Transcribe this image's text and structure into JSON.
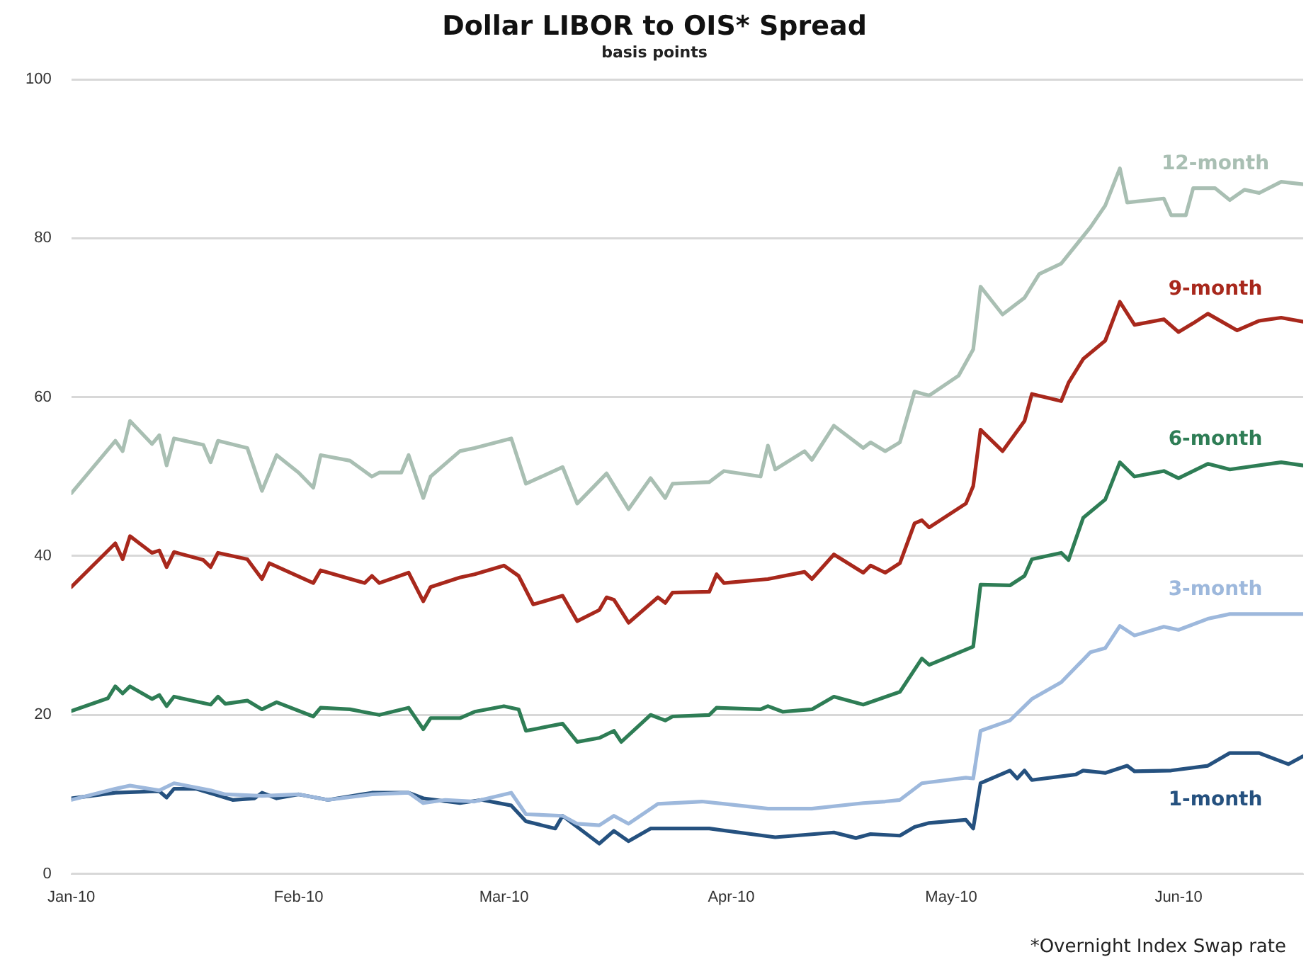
{
  "chart_data": {
    "type": "line",
    "title": "Dollar LIBOR to OIS* Spread",
    "subtitle": "basis points",
    "annotations": [
      "*Overnight Index Swap rate"
    ],
    "grid": "y",
    "legend": false,
    "xlim": [
      "2010-01-01",
      "2010-06-18"
    ],
    "xticks": [
      {
        "value": "2010-01-01",
        "label": "Jan-10"
      },
      {
        "value": "2010-02-01",
        "label": "Feb-10"
      },
      {
        "value": "2010-03-01",
        "label": "Mar-10"
      },
      {
        "value": "2010-04-01",
        "label": "Apr-10"
      },
      {
        "value": "2010-05-01",
        "label": "May-10"
      },
      {
        "value": "2010-06-01",
        "label": "Jun-10"
      }
    ],
    "ylim": [
      0,
      100
    ],
    "yticks": [
      0,
      20,
      40,
      60,
      80,
      100
    ],
    "series": [
      {
        "name": "12-month",
        "color": "#a9bfb3",
        "x": [
          "2010-01-01",
          "2010-01-07",
          "2010-01-08",
          "2010-01-09",
          "2010-01-12",
          "2010-01-13",
          "2010-01-14",
          "2010-01-15",
          "2010-01-19",
          "2010-01-20",
          "2010-01-21",
          "2010-01-25",
          "2010-01-27",
          "2010-01-29",
          "2010-02-01",
          "2010-02-03",
          "2010-02-04",
          "2010-02-08",
          "2010-02-11",
          "2010-02-12",
          "2010-02-15",
          "2010-02-16",
          "2010-02-18",
          "2010-02-19",
          "2010-02-23",
          "2010-02-25",
          "2010-03-02",
          "2010-03-04",
          "2010-03-09",
          "2010-03-11",
          "2010-03-15",
          "2010-03-18",
          "2010-03-21",
          "2010-03-23",
          "2010-03-24",
          "2010-03-29",
          "2010-03-31",
          "2010-04-05",
          "2010-04-06",
          "2010-04-07",
          "2010-04-11",
          "2010-04-12",
          "2010-04-15",
          "2010-04-19",
          "2010-04-20",
          "2010-04-22",
          "2010-04-24",
          "2010-04-26",
          "2010-04-28",
          "2010-05-02",
          "2010-05-04",
          "2010-05-05",
          "2010-05-08",
          "2010-05-11",
          "2010-05-13",
          "2010-05-16",
          "2010-05-20",
          "2010-05-22",
          "2010-05-24",
          "2010-05-25",
          "2010-05-30",
          "2010-05-31",
          "2010-06-02",
          "2010-06-03",
          "2010-06-06",
          "2010-06-08",
          "2010-06-10",
          "2010-06-12",
          "2010-06-15",
          "2010-06-18"
        ],
        "values": [
          47.9,
          54.5,
          53.2,
          57.0,
          54.1,
          55.2,
          51.4,
          54.8,
          54.0,
          51.8,
          54.5,
          53.6,
          48.2,
          52.7,
          50.5,
          48.6,
          52.7,
          52.0,
          50.0,
          50.5,
          50.5,
          52.7,
          47.3,
          50.0,
          53.2,
          53.6,
          54.8,
          49.1,
          51.2,
          46.6,
          50.4,
          45.9,
          49.8,
          47.3,
          49.1,
          49.3,
          50.7,
          50.0,
          53.9,
          50.9,
          53.2,
          52.1,
          56.4,
          53.6,
          54.3,
          53.2,
          54.3,
          60.7,
          60.2,
          62.7,
          66.0,
          73.9,
          70.4,
          72.5,
          75.5,
          76.8,
          81.4,
          84.1,
          88.8,
          84.5,
          85.0,
          82.9,
          82.9,
          86.3,
          86.3,
          84.8,
          86.1,
          85.7,
          87.1,
          86.8
        ]
      },
      {
        "name": "9-month",
        "color": "#a8281c",
        "x": [
          "2010-01-01",
          "2010-01-07",
          "2010-01-08",
          "2010-01-09",
          "2010-01-12",
          "2010-01-13",
          "2010-01-14",
          "2010-01-15",
          "2010-01-19",
          "2010-01-20",
          "2010-01-21",
          "2010-01-25",
          "2010-01-27",
          "2010-01-28",
          "2010-02-03",
          "2010-02-04",
          "2010-02-10",
          "2010-02-11",
          "2010-02-12",
          "2010-02-16",
          "2010-02-18",
          "2010-02-19",
          "2010-02-23",
          "2010-02-25",
          "2010-03-01",
          "2010-03-03",
          "2010-03-05",
          "2010-03-09",
          "2010-03-11",
          "2010-03-14",
          "2010-03-15",
          "2010-03-16",
          "2010-03-18",
          "2010-03-22",
          "2010-03-23",
          "2010-03-24",
          "2010-03-29",
          "2010-03-30",
          "2010-03-31",
          "2010-04-06",
          "2010-04-11",
          "2010-04-12",
          "2010-04-15",
          "2010-04-19",
          "2010-04-20",
          "2010-04-22",
          "2010-04-24",
          "2010-04-26",
          "2010-04-27",
          "2010-04-28",
          "2010-05-03",
          "2010-05-04",
          "2010-05-05",
          "2010-05-08",
          "2010-05-11",
          "2010-05-12",
          "2010-05-16",
          "2010-05-17",
          "2010-05-19",
          "2010-05-22",
          "2010-05-24",
          "2010-05-26",
          "2010-05-30",
          "2010-06-01",
          "2010-06-03",
          "2010-06-05",
          "2010-06-09",
          "2010-06-12",
          "2010-06-15",
          "2010-06-18"
        ],
        "values": [
          36.1,
          41.6,
          39.6,
          42.5,
          40.4,
          40.7,
          38.6,
          40.5,
          39.5,
          38.6,
          40.4,
          39.6,
          37.1,
          39.1,
          36.6,
          38.2,
          36.6,
          37.5,
          36.6,
          37.9,
          34.3,
          36.1,
          37.3,
          37.7,
          38.8,
          37.5,
          33.9,
          35.0,
          31.8,
          33.2,
          34.8,
          34.5,
          31.6,
          34.8,
          34.1,
          35.4,
          35.5,
          37.7,
          36.6,
          37.1,
          38.0,
          37.1,
          40.2,
          37.9,
          38.8,
          37.9,
          39.1,
          44.1,
          44.5,
          43.6,
          46.6,
          48.8,
          55.9,
          53.2,
          57.0,
          60.4,
          59.5,
          61.8,
          64.8,
          67.1,
          72.0,
          69.1,
          69.8,
          68.2,
          69.3,
          70.5,
          68.4,
          69.6,
          70.0,
          69.5
        ]
      },
      {
        "name": "6-month",
        "color": "#2e7d55",
        "x": [
          "2010-01-01",
          "2010-01-06",
          "2010-01-07",
          "2010-01-08",
          "2010-01-09",
          "2010-01-12",
          "2010-01-13",
          "2010-01-14",
          "2010-01-15",
          "2010-01-20",
          "2010-01-21",
          "2010-01-22",
          "2010-01-25",
          "2010-01-27",
          "2010-01-29",
          "2010-02-03",
          "2010-02-04",
          "2010-02-08",
          "2010-02-12",
          "2010-02-16",
          "2010-02-18",
          "2010-02-19",
          "2010-02-23",
          "2010-02-25",
          "2010-03-01",
          "2010-03-03",
          "2010-03-04",
          "2010-03-09",
          "2010-03-11",
          "2010-03-14",
          "2010-03-16",
          "2010-03-17",
          "2010-03-21",
          "2010-03-23",
          "2010-03-24",
          "2010-03-29",
          "2010-03-30",
          "2010-04-05",
          "2010-04-06",
          "2010-04-08",
          "2010-04-12",
          "2010-04-15",
          "2010-04-19",
          "2010-04-24",
          "2010-04-27",
          "2010-04-28",
          "2010-05-04",
          "2010-05-05",
          "2010-05-09",
          "2010-05-11",
          "2010-05-12",
          "2010-05-16",
          "2010-05-17",
          "2010-05-19",
          "2010-05-22",
          "2010-05-24",
          "2010-05-26",
          "2010-05-30",
          "2010-06-01",
          "2010-06-05",
          "2010-06-08",
          "2010-06-15",
          "2010-06-18"
        ],
        "values": [
          20.5,
          22.1,
          23.6,
          22.7,
          23.6,
          22.0,
          22.5,
          21.1,
          22.3,
          21.3,
          22.3,
          21.4,
          21.8,
          20.7,
          21.6,
          19.8,
          20.9,
          20.7,
          20.0,
          20.9,
          18.2,
          19.6,
          19.6,
          20.4,
          21.1,
          20.7,
          18.0,
          18.9,
          16.6,
          17.1,
          18.0,
          16.6,
          20.0,
          19.3,
          19.8,
          20.0,
          20.9,
          20.7,
          21.1,
          20.4,
          20.7,
          22.3,
          21.3,
          22.9,
          27.1,
          26.3,
          28.6,
          36.4,
          36.3,
          37.5,
          39.6,
          40.4,
          39.5,
          44.8,
          47.1,
          51.8,
          50.0,
          50.7,
          49.8,
          51.6,
          50.9,
          51.8,
          51.4
        ]
      },
      {
        "name": "3-month",
        "color": "#9db8dc",
        "x": [
          "2010-01-01",
          "2010-01-07",
          "2010-01-09",
          "2010-01-13",
          "2010-01-15",
          "2010-01-20",
          "2010-01-22",
          "2010-01-27",
          "2010-02-01",
          "2010-02-05",
          "2010-02-11",
          "2010-02-16",
          "2010-02-18",
          "2010-02-21",
          "2010-02-25",
          "2010-03-02",
          "2010-03-04",
          "2010-03-09",
          "2010-03-11",
          "2010-03-14",
          "2010-03-16",
          "2010-03-18",
          "2010-03-22",
          "2010-03-28",
          "2010-04-06",
          "2010-04-12",
          "2010-04-19",
          "2010-04-22",
          "2010-04-24",
          "2010-04-27",
          "2010-05-03",
          "2010-05-04",
          "2010-05-05",
          "2010-05-09",
          "2010-05-12",
          "2010-05-16",
          "2010-05-20",
          "2010-05-22",
          "2010-05-24",
          "2010-05-26",
          "2010-05-30",
          "2010-06-01",
          "2010-06-05",
          "2010-06-08",
          "2010-06-13",
          "2010-06-18"
        ],
        "values": [
          9.3,
          10.7,
          11.1,
          10.5,
          11.4,
          10.5,
          10.0,
          9.8,
          10.0,
          9.3,
          10.0,
          10.2,
          8.9,
          9.3,
          9.1,
          10.2,
          7.5,
          7.3,
          6.3,
          6.1,
          7.3,
          6.3,
          8.8,
          9.1,
          8.2,
          8.2,
          8.9,
          9.1,
          9.3,
          11.4,
          12.1,
          12.0,
          18.0,
          19.3,
          22.0,
          24.1,
          27.9,
          28.4,
          31.2,
          30.0,
          31.1,
          30.7,
          32.1,
          32.7,
          32.7,
          32.7
        ]
      },
      {
        "name": "1-month",
        "color": "#25517f",
        "x": [
          "2010-01-01",
          "2010-01-07",
          "2010-01-13",
          "2010-01-14",
          "2010-01-15",
          "2010-01-18",
          "2010-01-23",
          "2010-01-26",
          "2010-01-27",
          "2010-01-29",
          "2010-02-01",
          "2010-02-05",
          "2010-02-11",
          "2010-02-16",
          "2010-02-18",
          "2010-02-23",
          "2010-02-26",
          "2010-03-02",
          "2010-03-04",
          "2010-03-08",
          "2010-03-09",
          "2010-03-14",
          "2010-03-16",
          "2010-03-18",
          "2010-03-21",
          "2010-03-29",
          "2010-04-07",
          "2010-04-15",
          "2010-04-18",
          "2010-04-20",
          "2010-04-24",
          "2010-04-26",
          "2010-04-28",
          "2010-05-03",
          "2010-05-04",
          "2010-05-05",
          "2010-05-09",
          "2010-05-10",
          "2010-05-11",
          "2010-05-12",
          "2010-05-18",
          "2010-05-19",
          "2010-05-22",
          "2010-05-25",
          "2010-05-26",
          "2010-05-31",
          "2010-06-05",
          "2010-06-08",
          "2010-06-12",
          "2010-06-16",
          "2010-06-18"
        ],
        "values": [
          9.5,
          10.2,
          10.4,
          9.6,
          10.7,
          10.7,
          9.3,
          9.5,
          10.2,
          9.5,
          10.0,
          9.3,
          10.2,
          10.2,
          9.5,
          8.9,
          9.3,
          8.6,
          6.6,
          5.7,
          7.3,
          3.8,
          5.4,
          4.1,
          5.7,
          5.7,
          4.6,
          5.2,
          4.5,
          5.0,
          4.8,
          5.9,
          6.4,
          6.8,
          5.7,
          11.4,
          13.0,
          12.0,
          13.0,
          11.8,
          12.5,
          13.0,
          12.7,
          13.6,
          12.9,
          13.0,
          13.6,
          15.2,
          15.2,
          13.8,
          14.8
        ]
      }
    ]
  }
}
